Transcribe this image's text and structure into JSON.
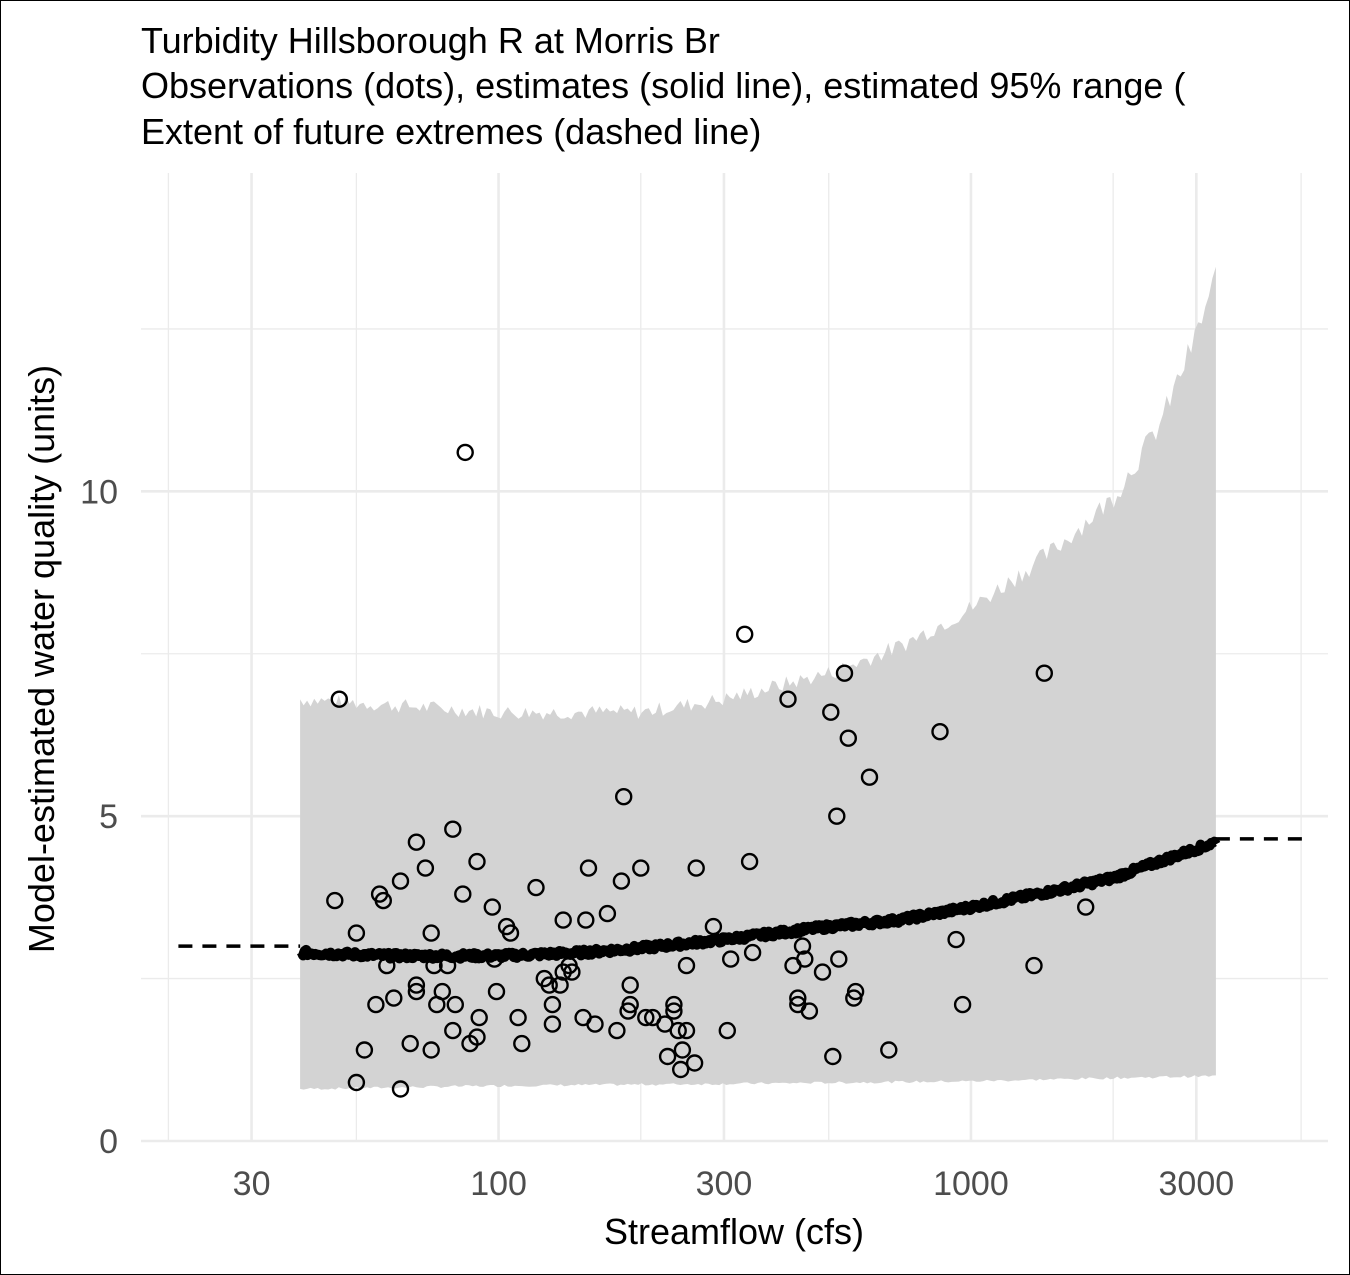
{
  "title": {
    "line1": "Turbidity Hillsborough R at Morris Br",
    "line2": "Observations (dots), estimates (solid line), estimated 95% range (",
    "line3": "Extent of future extremes (dashed line)"
  },
  "colors": {
    "band": "#d3d3d3",
    "grid": "#ebebeb",
    "line": "#000000",
    "points": "#000000",
    "tick_text": "#4d4d4d"
  },
  "chart_data": {
    "type": "scatter",
    "xlabel": "Streamflow (cfs)",
    "ylabel": "Model-estimated water quality (units)",
    "x_scale": "log10",
    "xlim": [
      17.5,
      5700
    ],
    "ylim": [
      0,
      14.9
    ],
    "x_ticks": [
      30,
      100,
      300,
      1000,
      3000
    ],
    "x_tick_labels": [
      "30",
      "100",
      "300",
      "1000",
      "3000"
    ],
    "y_ticks": [
      0,
      5,
      10
    ],
    "y_tick_labels": [
      "0",
      "5",
      "10"
    ],
    "grid": true,
    "observations": [
      {
        "x": 85,
        "y": 10.6
      },
      {
        "x": 332,
        "y": 7.8
      },
      {
        "x": 46,
        "y": 6.8
      },
      {
        "x": 540,
        "y": 7.2
      },
      {
        "x": 1430,
        "y": 7.2
      },
      {
        "x": 410,
        "y": 6.8
      },
      {
        "x": 505,
        "y": 6.6
      },
      {
        "x": 550,
        "y": 6.2
      },
      {
        "x": 860,
        "y": 6.3
      },
      {
        "x": 610,
        "y": 5.6
      },
      {
        "x": 184,
        "y": 5.3
      },
      {
        "x": 520,
        "y": 5.0
      },
      {
        "x": 80,
        "y": 4.8
      },
      {
        "x": 67,
        "y": 4.6
      },
      {
        "x": 90,
        "y": 4.3
      },
      {
        "x": 70,
        "y": 4.2
      },
      {
        "x": 340,
        "y": 4.3
      },
      {
        "x": 200,
        "y": 4.2
      },
      {
        "x": 262,
        "y": 4.2
      },
      {
        "x": 155,
        "y": 4.2
      },
      {
        "x": 62,
        "y": 4.0
      },
      {
        "x": 182,
        "y": 4.0
      },
      {
        "x": 120,
        "y": 3.9
      },
      {
        "x": 56,
        "y": 3.8
      },
      {
        "x": 84,
        "y": 3.8
      },
      {
        "x": 45,
        "y": 3.7
      },
      {
        "x": 57,
        "y": 3.7
      },
      {
        "x": 97,
        "y": 3.6
      },
      {
        "x": 1750,
        "y": 3.6
      },
      {
        "x": 170,
        "y": 3.5
      },
      {
        "x": 137,
        "y": 3.4
      },
      {
        "x": 153,
        "y": 3.4
      },
      {
        "x": 104,
        "y": 3.3
      },
      {
        "x": 285,
        "y": 3.3
      },
      {
        "x": 50,
        "y": 3.2
      },
      {
        "x": 72,
        "y": 3.2
      },
      {
        "x": 106,
        "y": 3.2
      },
      {
        "x": 930,
        "y": 3.1
      },
      {
        "x": 440,
        "y": 3.0
      },
      {
        "x": 345,
        "y": 2.9
      },
      {
        "x": 98,
        "y": 2.8
      },
      {
        "x": 310,
        "y": 2.8
      },
      {
        "x": 445,
        "y": 2.8
      },
      {
        "x": 525,
        "y": 2.8
      },
      {
        "x": 58,
        "y": 2.7
      },
      {
        "x": 73,
        "y": 2.7
      },
      {
        "x": 78,
        "y": 2.7
      },
      {
        "x": 141,
        "y": 2.7
      },
      {
        "x": 250,
        "y": 2.7
      },
      {
        "x": 420,
        "y": 2.7
      },
      {
        "x": 1360,
        "y": 2.7
      },
      {
        "x": 137,
        "y": 2.6
      },
      {
        "x": 143,
        "y": 2.6
      },
      {
        "x": 485,
        "y": 2.6
      },
      {
        "x": 125,
        "y": 2.5
      },
      {
        "x": 128,
        "y": 2.4
      },
      {
        "x": 135,
        "y": 2.4
      },
      {
        "x": 190,
        "y": 2.4
      },
      {
        "x": 67,
        "y": 2.4
      },
      {
        "x": 67,
        "y": 2.3
      },
      {
        "x": 99,
        "y": 2.3
      },
      {
        "x": 76,
        "y": 2.3
      },
      {
        "x": 570,
        "y": 2.3
      },
      {
        "x": 60,
        "y": 2.2
      },
      {
        "x": 430,
        "y": 2.2
      },
      {
        "x": 565,
        "y": 2.2
      },
      {
        "x": 55,
        "y": 2.1
      },
      {
        "x": 74,
        "y": 2.1
      },
      {
        "x": 81,
        "y": 2.1
      },
      {
        "x": 130,
        "y": 2.1
      },
      {
        "x": 190,
        "y": 2.1
      },
      {
        "x": 235,
        "y": 2.1
      },
      {
        "x": 430,
        "y": 2.1
      },
      {
        "x": 960,
        "y": 2.1
      },
      {
        "x": 188,
        "y": 2.0
      },
      {
        "x": 235,
        "y": 2.0
      },
      {
        "x": 455,
        "y": 2.0
      },
      {
        "x": 91,
        "y": 1.9
      },
      {
        "x": 110,
        "y": 1.9
      },
      {
        "x": 151,
        "y": 1.9
      },
      {
        "x": 205,
        "y": 1.9
      },
      {
        "x": 212,
        "y": 1.9
      },
      {
        "x": 130,
        "y": 1.8
      },
      {
        "x": 160,
        "y": 1.8
      },
      {
        "x": 225,
        "y": 1.8
      },
      {
        "x": 80,
        "y": 1.7
      },
      {
        "x": 178,
        "y": 1.7
      },
      {
        "x": 240,
        "y": 1.7
      },
      {
        "x": 250,
        "y": 1.7
      },
      {
        "x": 305,
        "y": 1.7
      },
      {
        "x": 90,
        "y": 1.6
      },
      {
        "x": 65,
        "y": 1.5
      },
      {
        "x": 87,
        "y": 1.5
      },
      {
        "x": 112,
        "y": 1.5
      },
      {
        "x": 52,
        "y": 1.4
      },
      {
        "x": 72,
        "y": 1.4
      },
      {
        "x": 245,
        "y": 1.4
      },
      {
        "x": 670,
        "y": 1.4
      },
      {
        "x": 228,
        "y": 1.3
      },
      {
        "x": 510,
        "y": 1.3
      },
      {
        "x": 260,
        "y": 1.2
      },
      {
        "x": 243,
        "y": 1.1
      },
      {
        "x": 50,
        "y": 0.9
      },
      {
        "x": 62,
        "y": 0.8
      }
    ],
    "estimate_curve": [
      {
        "x": 38,
        "y": 2.9
      },
      {
        "x": 60,
        "y": 2.85
      },
      {
        "x": 100,
        "y": 2.85
      },
      {
        "x": 150,
        "y": 2.9
      },
      {
        "x": 200,
        "y": 2.97
      },
      {
        "x": 300,
        "y": 3.1
      },
      {
        "x": 500,
        "y": 3.3
      },
      {
        "x": 700,
        "y": 3.4
      },
      {
        "x": 1000,
        "y": 3.6
      },
      {
        "x": 1500,
        "y": 3.85
      },
      {
        "x": 2000,
        "y": 4.05
      },
      {
        "x": 2500,
        "y": 4.3
      },
      {
        "x": 3300,
        "y": 4.6
      }
    ],
    "band_lower": [
      {
        "x": 38,
        "y": 0.8
      },
      {
        "x": 100,
        "y": 0.85
      },
      {
        "x": 300,
        "y": 0.88
      },
      {
        "x": 1000,
        "y": 0.92
      },
      {
        "x": 2000,
        "y": 0.97
      },
      {
        "x": 3300,
        "y": 1.0
      }
    ],
    "band_upper": [
      {
        "x": 38,
        "y": 6.8
      },
      {
        "x": 100,
        "y": 6.6
      },
      {
        "x": 200,
        "y": 6.6
      },
      {
        "x": 300,
        "y": 6.8
      },
      {
        "x": 500,
        "y": 7.2
      },
      {
        "x": 700,
        "y": 7.6
      },
      {
        "x": 1000,
        "y": 8.2
      },
      {
        "x": 1500,
        "y": 9.1
      },
      {
        "x": 2000,
        "y": 9.9
      },
      {
        "x": 2500,
        "y": 11.0
      },
      {
        "x": 3000,
        "y": 12.4
      },
      {
        "x": 3300,
        "y": 13.3
      }
    ],
    "dashed_extremes": [
      {
        "x_from": 21,
        "x_to": 38,
        "y": 3.0
      },
      {
        "x_from": 3300,
        "x_to": 5100,
        "y": 4.65
      }
    ]
  }
}
